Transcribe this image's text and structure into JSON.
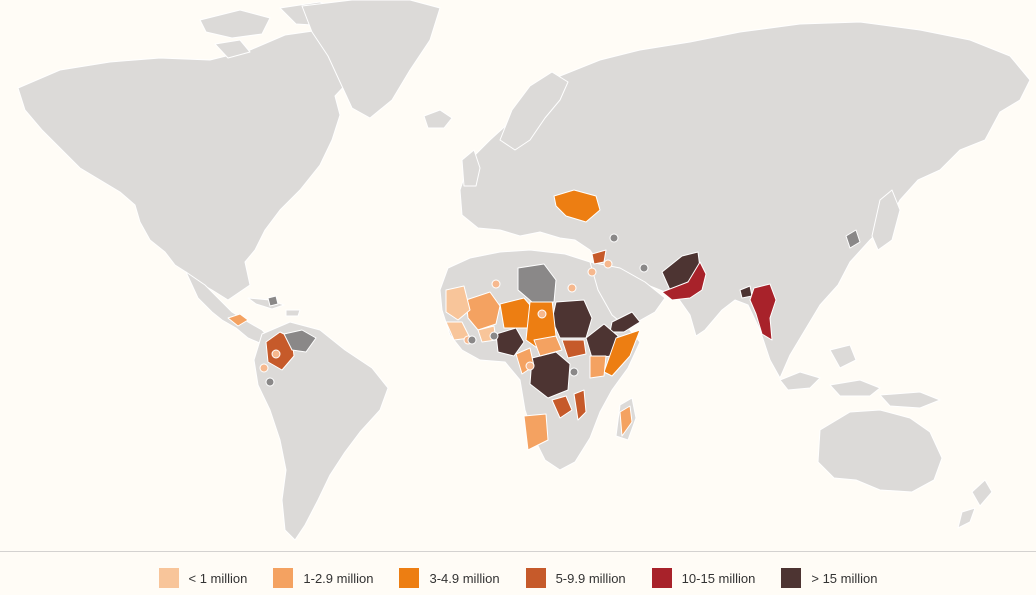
{
  "colors": {
    "background": "#fffcf6",
    "land": "#dcdad8",
    "borders": "#ffffff",
    "no_data": "#8a8888"
  },
  "legend": {
    "items": [
      {
        "label": "< 1 million",
        "color": "#f8c59a"
      },
      {
        "label": "1-2.9 million",
        "color": "#f4a261"
      },
      {
        "label": "3-4.9 million",
        "color": "#ed7e12"
      },
      {
        "label": "5-9.9 million",
        "color": "#c65a2a"
      },
      {
        "label": "10-15 million",
        "color": "#a8222a"
      },
      {
        "label": "> 15 million",
        "color": "#4d3432"
      }
    ]
  },
  "map": {
    "type": "choropleth",
    "category_scale": [
      "< 1 million",
      "1-2.9 million",
      "3-4.9 million",
      "5-9.9 million",
      "10-15 million",
      "> 15 million"
    ],
    "icon": "world-map"
  }
}
